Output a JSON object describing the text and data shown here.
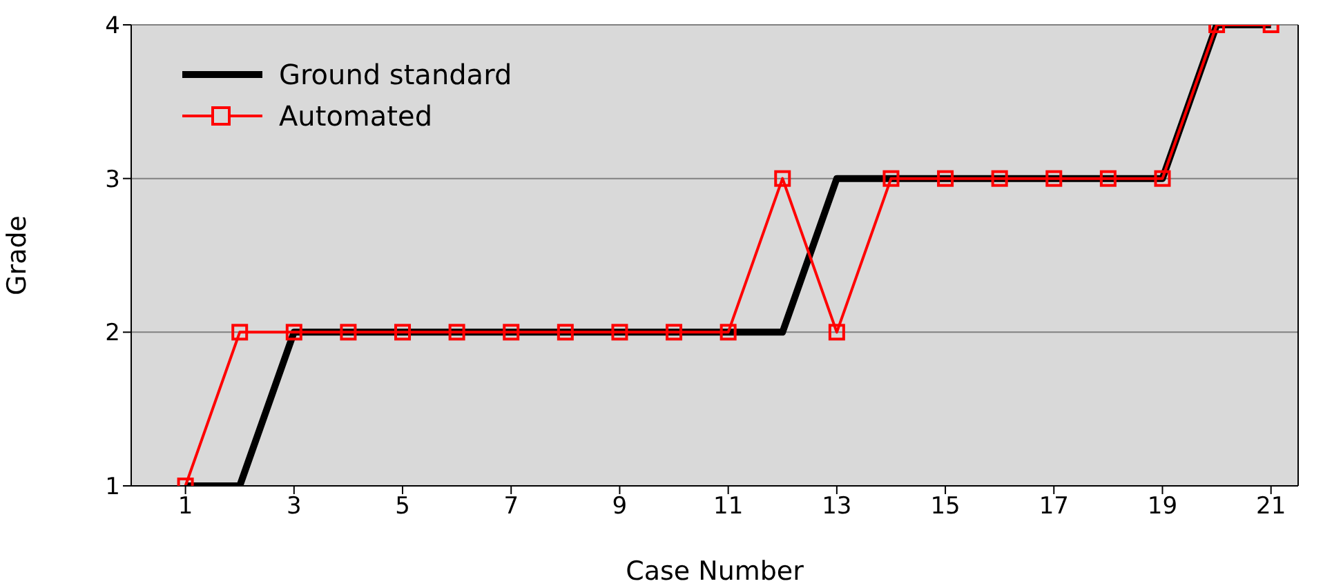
{
  "chart_data": {
    "type": "line",
    "xlabel": "Case Number",
    "ylabel": "Grade",
    "x": [
      1,
      2,
      3,
      4,
      5,
      6,
      7,
      8,
      9,
      10,
      11,
      12,
      13,
      14,
      15,
      16,
      17,
      18,
      19,
      20,
      21
    ],
    "series": [
      {
        "name": "Ground standard",
        "color": "#000000",
        "marker": "none",
        "values": [
          1,
          1,
          2,
          2,
          2,
          2,
          2,
          2,
          2,
          2,
          2,
          2,
          3,
          3,
          3,
          3,
          3,
          3,
          3,
          4,
          4
        ]
      },
      {
        "name": "Automated",
        "color": "#ff0000",
        "marker": "square",
        "values": [
          1,
          2,
          2,
          2,
          2,
          2,
          2,
          2,
          2,
          2,
          2,
          3,
          2,
          3,
          3,
          3,
          3,
          3,
          3,
          4,
          4
        ]
      }
    ],
    "xlim": [
      0,
      21.5
    ],
    "xticks": [
      1,
      3,
      5,
      7,
      9,
      11,
      13,
      15,
      17,
      19,
      21
    ],
    "ylim": [
      1,
      4
    ],
    "yticks": [
      1,
      2,
      3,
      4
    ],
    "grid": "y",
    "legend": "top left",
    "line_style": "solid"
  }
}
